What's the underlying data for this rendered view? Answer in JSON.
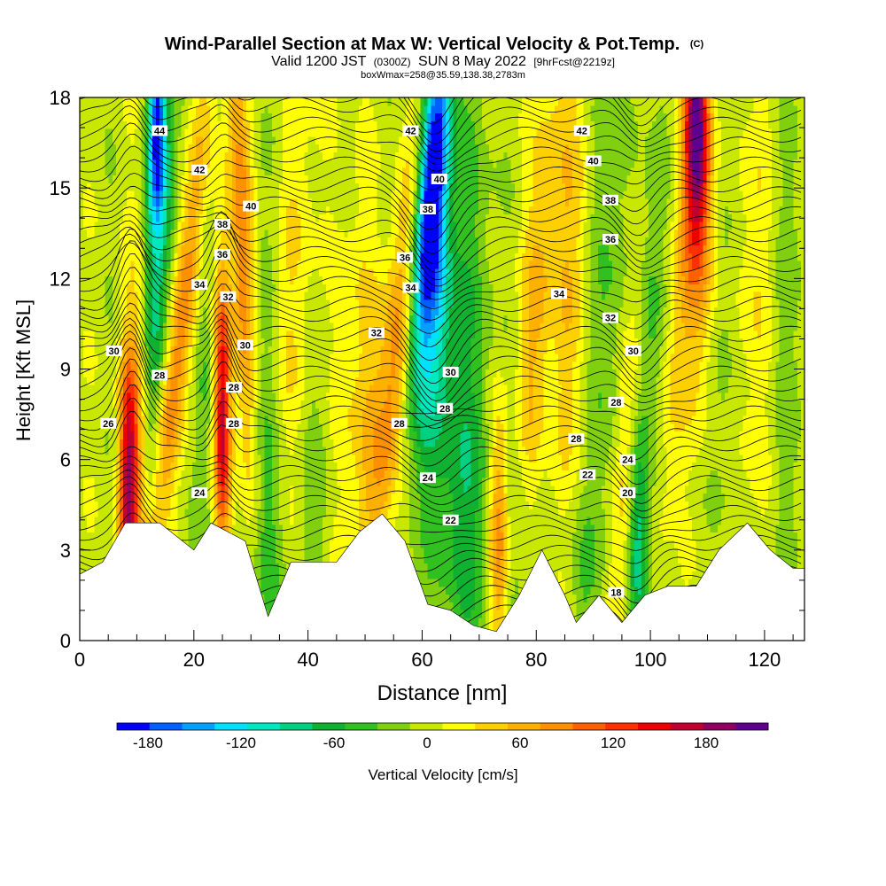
{
  "chart_data": {
    "type": "heatmap",
    "title": "Wind-Parallel Section at Max W: Vertical Velocity & Pot.Temp.",
    "title_mark": "(C)",
    "subtitle_parts": [
      "Valid 1200 JST",
      "(0300Z)",
      "SUN 8 May 2022",
      "[9hrFcst@2219z]"
    ],
    "subtitle2": "boxWmax=258@35.59,138.38,2783m",
    "xlabel": "Distance [nm]",
    "ylabel": "Height [Kft MSL]",
    "xlim": [
      0,
      127
    ],
    "ylim": [
      0,
      18
    ],
    "x_ticks": [
      "0",
      "20",
      "40",
      "60",
      "80",
      "100",
      "120"
    ],
    "y_ticks": [
      "0",
      "3",
      "6",
      "9",
      "12",
      "15",
      "18"
    ],
    "colorbar": {
      "label": "Vertical Velocity [cm/s]",
      "ticks": [
        "-180",
        "-120",
        "-60",
        "0",
        "60",
        "120",
        "180"
      ],
      "min": -200,
      "max": 220,
      "colors": [
        "#0000ff",
        "#0060ff",
        "#00a0ff",
        "#00e0ff",
        "#00e8c0",
        "#00d080",
        "#10b030",
        "#30c020",
        "#80d010",
        "#c8e800",
        "#ffff00",
        "#ffd000",
        "#ffb000",
        "#ff9000",
        "#ff6000",
        "#ff3000",
        "#ee0000",
        "#c00030",
        "#900060",
        "#600090"
      ]
    },
    "terrain_kft": [
      [
        0,
        2.2
      ],
      [
        4,
        2.6
      ],
      [
        8,
        3.9
      ],
      [
        14,
        3.9
      ],
      [
        20,
        3.0
      ],
      [
        23,
        3.9
      ],
      [
        29,
        3.3
      ],
      [
        33,
        0.8
      ],
      [
        37,
        2.6
      ],
      [
        41,
        2.6
      ],
      [
        45,
        2.6
      ],
      [
        49,
        3.6
      ],
      [
        53,
        4.2
      ],
      [
        57,
        3.3
      ],
      [
        61,
        1.2
      ],
      [
        65,
        1.0
      ],
      [
        69,
        0.5
      ],
      [
        73,
        0.3
      ],
      [
        77,
        1.5
      ],
      [
        81,
        3.0
      ],
      [
        85,
        1.5
      ],
      [
        87,
        0.6
      ],
      [
        91,
        1.5
      ],
      [
        95,
        0.6
      ],
      [
        99,
        1.5
      ],
      [
        103,
        1.8
      ],
      [
        108,
        1.8
      ],
      [
        112,
        3.0
      ],
      [
        117,
        3.9
      ],
      [
        121,
        3.0
      ],
      [
        125,
        2.4
      ],
      [
        127,
        2.4
      ]
    ],
    "theta_labels": [
      {
        "text": "44",
        "x": 14,
        "y": 16.9
      },
      {
        "text": "42",
        "x": 21,
        "y": 15.6
      },
      {
        "text": "40",
        "x": 30,
        "y": 14.4
      },
      {
        "text": "38",
        "x": 25,
        "y": 13.8
      },
      {
        "text": "36",
        "x": 25,
        "y": 12.8
      },
      {
        "text": "34",
        "x": 21,
        "y": 11.8
      },
      {
        "text": "32",
        "x": 26,
        "y": 11.4
      },
      {
        "text": "30",
        "x": 29,
        "y": 9.8
      },
      {
        "text": "30",
        "x": 6,
        "y": 9.6
      },
      {
        "text": "28",
        "x": 14,
        "y": 8.8
      },
      {
        "text": "28",
        "x": 27,
        "y": 8.4
      },
      {
        "text": "26",
        "x": 5,
        "y": 7.2
      },
      {
        "text": "28",
        "x": 27,
        "y": 7.2
      },
      {
        "text": "24",
        "x": 21,
        "y": 4.9
      },
      {
        "text": "42",
        "x": 58,
        "y": 16.9
      },
      {
        "text": "40",
        "x": 63,
        "y": 15.3
      },
      {
        "text": "38",
        "x": 61,
        "y": 14.3
      },
      {
        "text": "36",
        "x": 57,
        "y": 12.7
      },
      {
        "text": "34",
        "x": 58,
        "y": 11.7
      },
      {
        "text": "32",
        "x": 52,
        "y": 10.2
      },
      {
        "text": "30",
        "x": 65,
        "y": 8.9
      },
      {
        "text": "28",
        "x": 64,
        "y": 7.7
      },
      {
        "text": "28",
        "x": 56,
        "y": 7.2
      },
      {
        "text": "24",
        "x": 61,
        "y": 5.4
      },
      {
        "text": "22",
        "x": 65,
        "y": 4.0
      },
      {
        "text": "42",
        "x": 88,
        "y": 16.9
      },
      {
        "text": "40",
        "x": 90,
        "y": 15.9
      },
      {
        "text": "38",
        "x": 93,
        "y": 14.6
      },
      {
        "text": "36",
        "x": 93,
        "y": 13.3
      },
      {
        "text": "34",
        "x": 84,
        "y": 11.5
      },
      {
        "text": "32",
        "x": 93,
        "y": 10.7
      },
      {
        "text": "30",
        "x": 97,
        "y": 9.6
      },
      {
        "text": "28",
        "x": 94,
        "y": 7.9
      },
      {
        "text": "28",
        "x": 87,
        "y": 6.7
      },
      {
        "text": "24",
        "x": 96,
        "y": 6.0
      },
      {
        "text": "22",
        "x": 89,
        "y": 5.5
      },
      {
        "text": "20",
        "x": 96,
        "y": 4.9
      },
      {
        "text": "18",
        "x": 94,
        "y": 1.6
      }
    ]
  }
}
